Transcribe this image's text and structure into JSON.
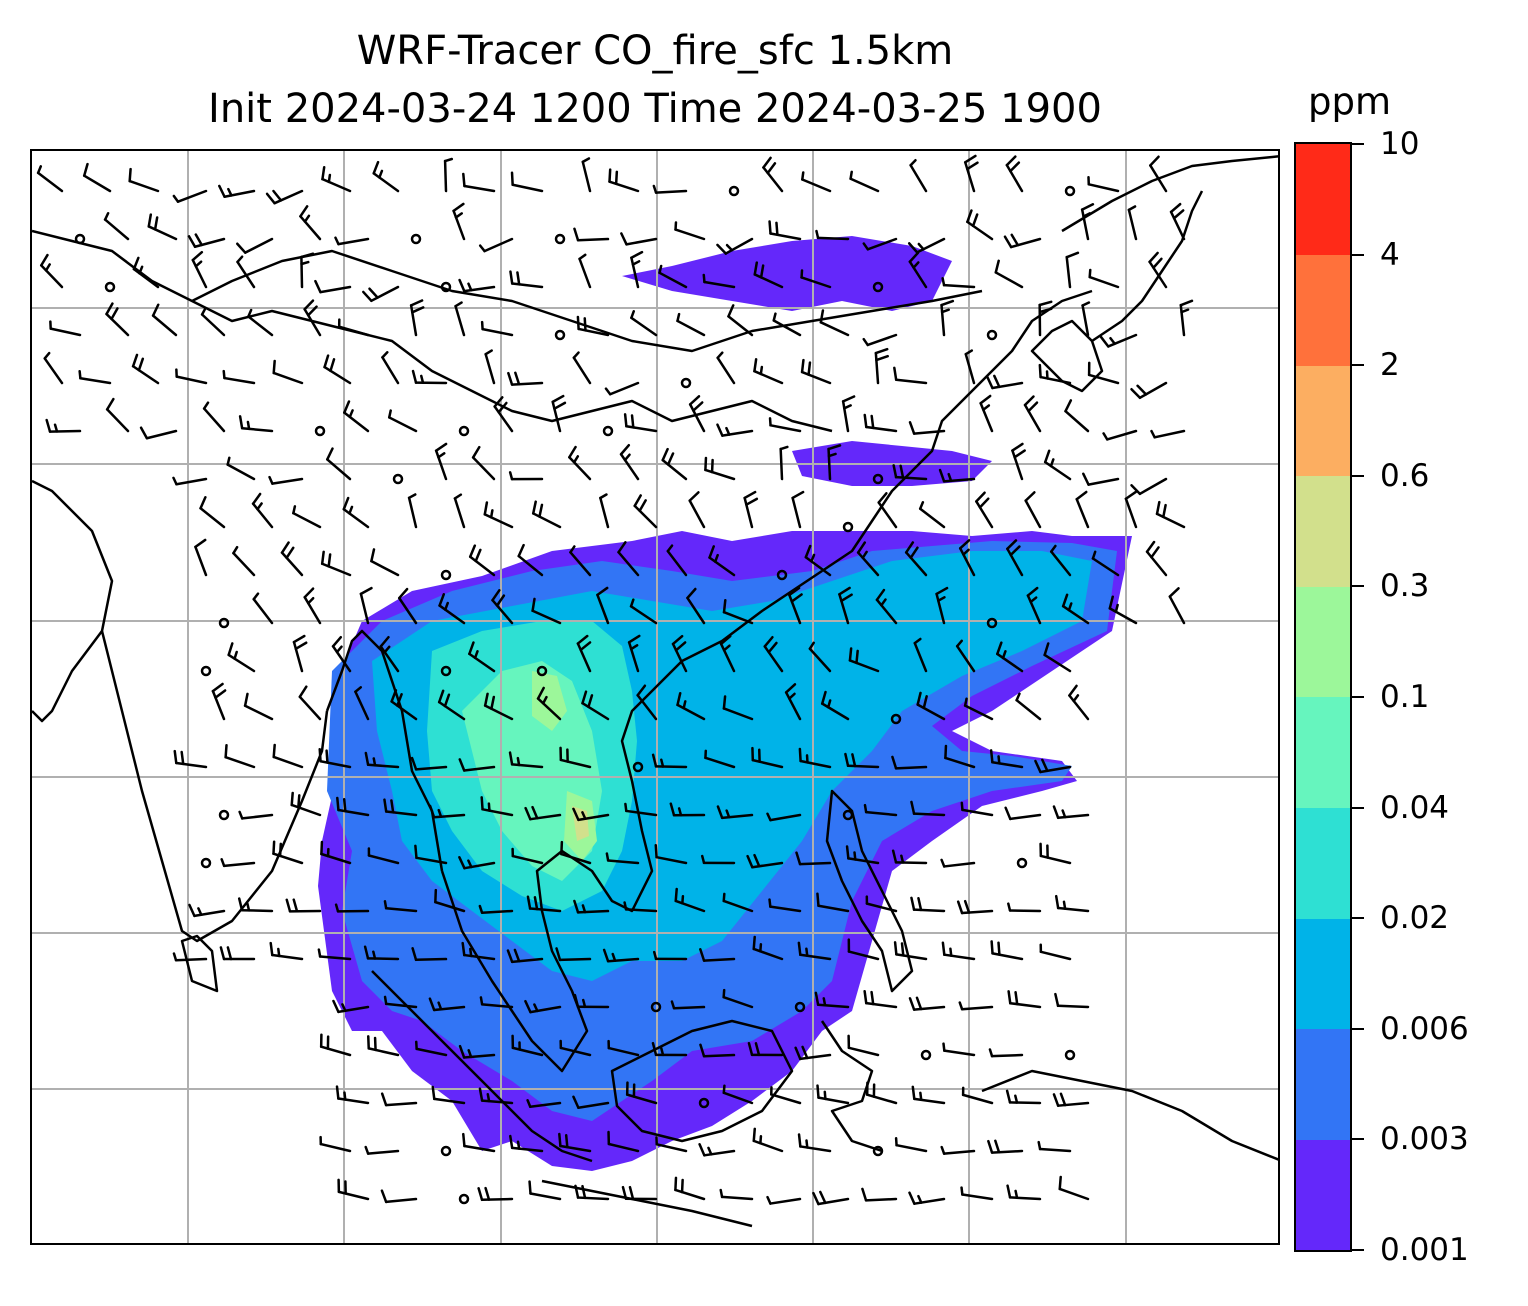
{
  "title": {
    "line1": "WRF-Tracer CO_fire_sfc 1.5km",
    "line2": "Init 2024-03-24 1200 Time 2024-03-25 1900"
  },
  "colorbar": {
    "unit": "ppm",
    "levels": [
      "0.001",
      "0.003",
      "0.006",
      "0.02",
      "0.04",
      "0.1",
      "0.3",
      "0.6",
      "2",
      "4",
      "10"
    ],
    "colors": [
      "#6428fa",
      "#3275f5",
      "#00b3e8",
      "#2ee0d3",
      "#66f5be",
      "#9cf79a",
      "#d2e08c",
      "#fcae61",
      "#ff713b",
      "#ff2a18"
    ]
  },
  "map": {
    "gridlines": true,
    "gridline_color": "#b0b0b0",
    "coastline_color": "#000000",
    "wind_barb_color": "#000000",
    "shading_palette_colors": [
      "#6428fa",
      "#3275f5",
      "#00b3e8",
      "#2ee0d3",
      "#66f5be",
      "#9cf79a",
      "#d2e08c"
    ]
  }
}
